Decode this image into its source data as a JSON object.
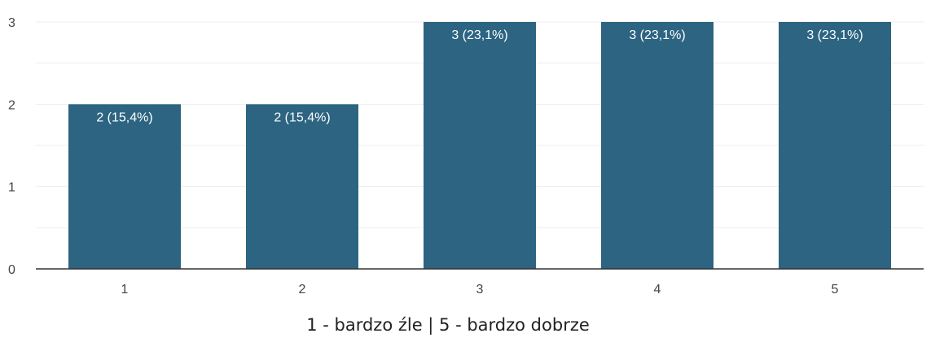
{
  "chart_data": {
    "type": "bar",
    "categories": [
      "1",
      "2",
      "3",
      "4",
      "5"
    ],
    "values": [
      2,
      2,
      3,
      3,
      3
    ],
    "data_labels": [
      "2 (15,4%)",
      "2 (15,4%)",
      "3 (23,1%)",
      "3 (23,1%)",
      "3 (23,1%)"
    ],
    "xlabel": "1 - bardzo źle | 5 - bardzo dobrze",
    "ylabel": "",
    "ylim": [
      0,
      3
    ],
    "yticks": [
      "0",
      "1",
      "2",
      "3"
    ],
    "grid": true,
    "bar_color": "#2c6481",
    "grid_color": "#eeeeee",
    "axis_color": "#333333"
  }
}
